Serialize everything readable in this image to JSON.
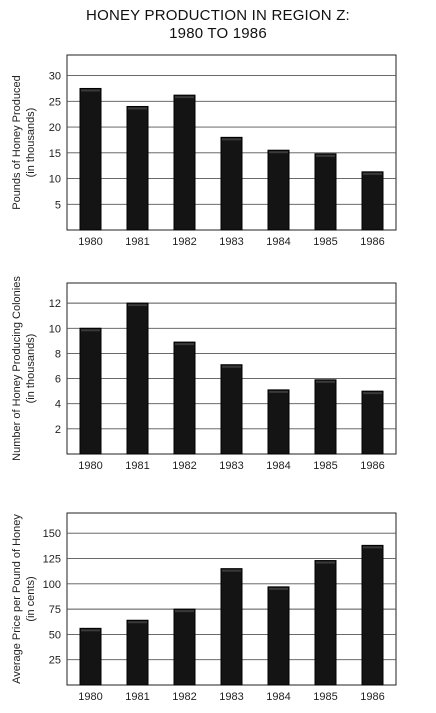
{
  "title": {
    "line1": "HONEY PRODUCTION IN REGION Z:",
    "line2": "1980 TO 1986"
  },
  "chart_data": [
    {
      "type": "bar",
      "categories": [
        "1980",
        "1981",
        "1982",
        "1983",
        "1984",
        "1985",
        "1986"
      ],
      "values": [
        27.5,
        24,
        26.2,
        18,
        15.5,
        14.8,
        11.3
      ],
      "ylabel": [
        "Pounds of Honey Produced",
        "(in thousands)"
      ],
      "ylim": [
        0,
        34
      ],
      "yticks": [
        5,
        10,
        15,
        20,
        25,
        30
      ],
      "grid": true
    },
    {
      "type": "bar",
      "categories": [
        "1980",
        "1981",
        "1982",
        "1983",
        "1984",
        "1985",
        "1986"
      ],
      "values": [
        10,
        12,
        8.9,
        7.1,
        5.1,
        5.9,
        5.0
      ],
      "ylabel": [
        "Number of Honey Producing Colonies",
        "(in thousands)"
      ],
      "ylim": [
        0,
        13.6
      ],
      "yticks": [
        2,
        4,
        6,
        8,
        10,
        12
      ],
      "grid": true
    },
    {
      "type": "bar",
      "categories": [
        "1980",
        "1981",
        "1982",
        "1983",
        "1984",
        "1985",
        "1986"
      ],
      "values": [
        56,
        64,
        75,
        115,
        97,
        123,
        138
      ],
      "ylabel": [
        "Average Price per Pound of Honey",
        "(in cents)"
      ],
      "ylim": [
        0,
        170
      ],
      "yticks": [
        25,
        50,
        75,
        100,
        125,
        150
      ],
      "grid": true
    }
  ]
}
